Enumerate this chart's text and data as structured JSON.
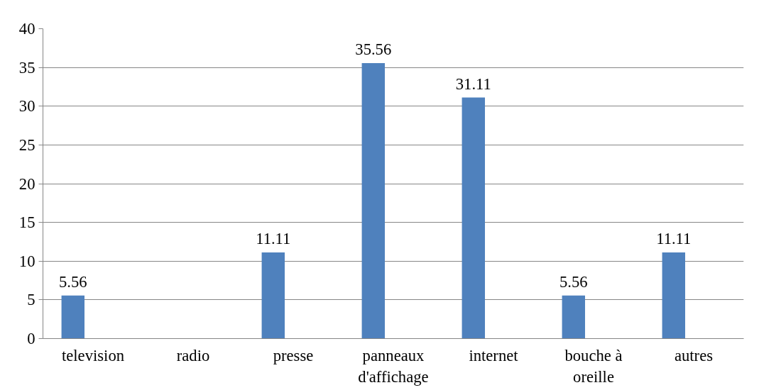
{
  "chart_data": {
    "type": "bar",
    "categories": [
      "television",
      "radio",
      "presse",
      "panneaux d'affichage",
      "internet",
      "bouche à oreille",
      "autres"
    ],
    "values": [
      5.56,
      null,
      11.11,
      35.56,
      31.11,
      5.56,
      11.11
    ],
    "color": "#4f81bd",
    "ylim": [
      0,
      40
    ],
    "yticks": [
      0,
      5,
      10,
      15,
      20,
      25,
      30,
      35,
      40
    ],
    "grid": "y",
    "data_labels": true
  }
}
